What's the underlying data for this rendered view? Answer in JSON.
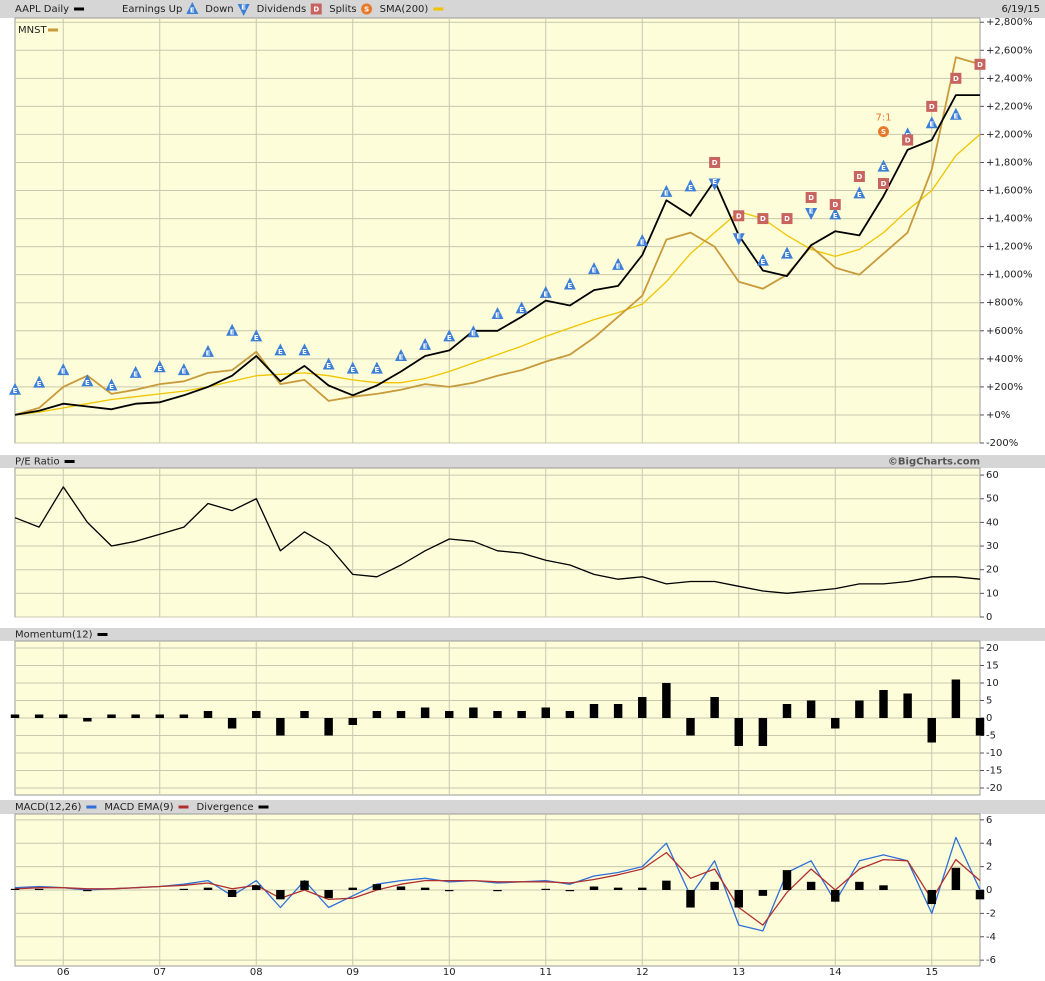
{
  "chart_data": [
    {
      "type": "line",
      "date": "6/19/15",
      "categories": [
        null,
        null,
        "06",
        null,
        null,
        null,
        "07",
        null,
        null,
        null,
        "08",
        null,
        null,
        null,
        "09",
        null,
        null,
        null,
        "10",
        null,
        null,
        null,
        "11",
        null,
        null,
        null,
        "12",
        null,
        null,
        null,
        "13",
        null,
        null,
        null,
        "14",
        null,
        null,
        null,
        "15",
        null,
        null
      ],
      "ylim": [
        -200,
        2830
      ],
      "yticks": [
        {
          "value": -200,
          "label": "-200%"
        },
        {
          "value": 0,
          "label": "+0%"
        },
        {
          "value": 200,
          "label": "+200%"
        },
        {
          "value": 400,
          "label": "+400%"
        },
        {
          "value": 600,
          "label": "+600%"
        },
        {
          "value": 800,
          "label": "+800%"
        },
        {
          "value": 1000,
          "label": "+1,000%"
        },
        {
          "value": 1200,
          "label": "+1,200%"
        },
        {
          "value": 1400,
          "label": "+1,400%"
        },
        {
          "value": 1600,
          "label": "+1,600%"
        },
        {
          "value": 1800,
          "label": "+1,800%"
        },
        {
          "value": 2000,
          "label": "+2,000%"
        },
        {
          "value": 2200,
          "label": "+2,200%"
        },
        {
          "value": 2400,
          "label": "+2,400%"
        },
        {
          "value": 2600,
          "label": "+2,600%"
        },
        {
          "value": 2800,
          "label": "+2,800%"
        }
      ],
      "grid": true,
      "series": [
        {
          "name": "AAPL Daily",
          "color": "#000000",
          "values": [
            0,
            30,
            80,
            60,
            40,
            80,
            90,
            140,
            200,
            280,
            420,
            240,
            350,
            210,
            140,
            210,
            310,
            420,
            460,
            600,
            600,
            700,
            815,
            780,
            890,
            920,
            1140,
            1530,
            1420,
            1670,
            1280,
            1030,
            990,
            1210,
            1310,
            1280,
            1560,
            1890,
            1960,
            2280,
            2280
          ]
        },
        {
          "name": "MNST",
          "color": "#c89a3c",
          "values": [
            0,
            50,
            200,
            280,
            150,
            180,
            220,
            240,
            300,
            320,
            450,
            220,
            250,
            100,
            130,
            150,
            180,
            220,
            200,
            230,
            280,
            320,
            380,
            430,
            550,
            700,
            850,
            1250,
            1300,
            1200,
            950,
            900,
            1000,
            1200,
            1050,
            1000,
            1150,
            1300,
            1750,
            2550,
            2500
          ]
        },
        {
          "name": "SMA(200)",
          "color": "#f0c400",
          "values": [
            0,
            20,
            50,
            80,
            110,
            130,
            150,
            170,
            200,
            240,
            280,
            290,
            300,
            280,
            250,
            230,
            230,
            260,
            310,
            370,
            430,
            490,
            560,
            620,
            680,
            730,
            790,
            950,
            1150,
            1300,
            1450,
            1400,
            1280,
            1180,
            1130,
            1180,
            1300,
            1460,
            1600,
            1850,
            2000
          ]
        }
      ],
      "markers": [
        {
          "name": "Earnings Up",
          "label": "E",
          "shape": "up",
          "color": "#3d7fd6",
          "values": [
            180,
            230,
            320,
            240,
            210,
            300,
            340,
            320,
            450,
            600,
            560,
            460,
            460,
            360,
            330,
            330,
            420,
            500,
            560,
            590,
            720,
            760,
            870,
            930,
            1040,
            1070,
            1240,
            1590,
            1630,
            null,
            null,
            1100,
            1150,
            null,
            1430,
            1580,
            1770,
            2000,
            2080,
            2140,
            null
          ]
        },
        {
          "name": "Down",
          "label": "E",
          "shape": "down",
          "color": "#3d7fd6",
          "values": [
            null,
            null,
            null,
            null,
            null,
            null,
            null,
            null,
            null,
            null,
            null,
            null,
            null,
            null,
            null,
            null,
            null,
            null,
            null,
            null,
            null,
            null,
            null,
            null,
            null,
            null,
            null,
            null,
            null,
            1650,
            1260,
            null,
            null,
            1440,
            null,
            null,
            null,
            null,
            null,
            null,
            null
          ]
        },
        {
          "name": "Dividends",
          "label": "D",
          "shape": "square",
          "color": "#c8645f",
          "values": [
            null,
            null,
            null,
            null,
            null,
            null,
            null,
            null,
            null,
            null,
            null,
            null,
            null,
            null,
            null,
            null,
            null,
            null,
            null,
            null,
            null,
            null,
            null,
            null,
            null,
            null,
            null,
            null,
            null,
            1800,
            1420,
            1400,
            1400,
            1550,
            1500,
            1700,
            1650,
            1960,
            2200,
            2400,
            2500
          ]
        },
        {
          "name": "Splits",
          "label": "S",
          "shape": "circle",
          "color": "#e8782a",
          "annotation": "7:1",
          "values": [
            null,
            null,
            null,
            null,
            null,
            null,
            null,
            null,
            null,
            null,
            null,
            null,
            null,
            null,
            null,
            null,
            null,
            null,
            null,
            null,
            null,
            null,
            null,
            null,
            null,
            null,
            null,
            null,
            null,
            null,
            null,
            null,
            null,
            null,
            null,
            null,
            2020,
            null,
            null,
            null,
            null
          ]
        }
      ]
    },
    {
      "type": "line",
      "title": "P/E Ratio",
      "source": "©BigCharts.com",
      "ylim": [
        0,
        63
      ],
      "yticks": [
        0,
        10,
        20,
        30,
        40,
        50,
        60
      ],
      "grid": true,
      "series": [
        {
          "color": "#000000",
          "values": [
            42,
            38,
            55,
            40,
            30,
            32,
            35,
            38,
            48,
            45,
            50,
            28,
            36,
            30,
            18,
            17,
            22,
            28,
            33,
            32,
            28,
            27,
            24,
            22,
            18,
            16,
            17,
            14,
            15,
            15,
            13,
            11,
            10,
            11,
            12,
            14,
            14,
            15,
            17,
            17,
            16
          ]
        }
      ]
    },
    {
      "type": "bar",
      "title": "Momentum(12)",
      "color": "#000000",
      "ylim": [
        -22,
        22
      ],
      "yticks": [
        -20,
        -15,
        -10,
        -5,
        0,
        5,
        10,
        15,
        20
      ],
      "grid": true,
      "values": [
        1,
        1,
        1,
        -1,
        1,
        1,
        1,
        1,
        2,
        -3,
        2,
        -5,
        2,
        -5,
        -2,
        2,
        2,
        3,
        2,
        3,
        2,
        2,
        3,
        2,
        4,
        4,
        6,
        10,
        -5,
        6,
        -8,
        -8,
        4,
        5,
        -3,
        5,
        8,
        7,
        -7,
        11,
        -5
      ]
    },
    {
      "type": "line",
      "ylim": [
        -6.5,
        6.5
      ],
      "yticks": [
        -6,
        -4,
        -2,
        0,
        2,
        4,
        6
      ],
      "grid": true,
      "series": [
        {
          "name": "MACD(12,26)",
          "color": "#2f6fd8",
          "values": [
            0.2,
            0.3,
            0.2,
            0,
            0.1,
            0.2,
            0.3,
            0.5,
            0.8,
            -0.5,
            0.8,
            -1.5,
            0.8,
            -1.5,
            -0.5,
            0.5,
            0.8,
            1,
            0.7,
            0.8,
            0.6,
            0.7,
            0.8,
            0.5,
            1.2,
            1.5,
            2,
            4,
            -0.5,
            2.5,
            -3,
            -3.5,
            1.5,
            2.5,
            -1,
            2.5,
            3,
            2.5,
            -2,
            4.5,
            0
          ]
        },
        {
          "name": "MACD EMA(9)",
          "color": "#b03030",
          "values": [
            0.1,
            0.2,
            0.2,
            0.1,
            0.1,
            0.2,
            0.3,
            0.4,
            0.6,
            0.1,
            0.4,
            -0.7,
            0,
            -0.8,
            -0.7,
            0,
            0.5,
            0.8,
            0.8,
            0.8,
            0.7,
            0.7,
            0.7,
            0.6,
            0.9,
            1.3,
            1.8,
            3.2,
            1,
            1.8,
            -1.5,
            -3,
            -0.2,
            1.8,
            0,
            1.8,
            2.6,
            2.5,
            -0.8,
            2.6,
            0.8
          ]
        },
        {
          "name": "Divergence",
          "color": "#000000",
          "style": "bar",
          "values": [
            0.1,
            0.1,
            0,
            -0.1,
            0,
            0,
            0,
            0.1,
            0.2,
            -0.6,
            0.4,
            -0.8,
            0.8,
            -0.7,
            0.2,
            0.5,
            0.3,
            0.2,
            -0.1,
            0,
            -0.1,
            0,
            0.1,
            -0.1,
            0.3,
            0.2,
            0.2,
            0.8,
            -1.5,
            0.7,
            -1.5,
            -0.5,
            1.7,
            0.7,
            -1,
            0.7,
            0.4,
            0,
            -1.2,
            1.9,
            -0.8
          ]
        }
      ]
    }
  ]
}
